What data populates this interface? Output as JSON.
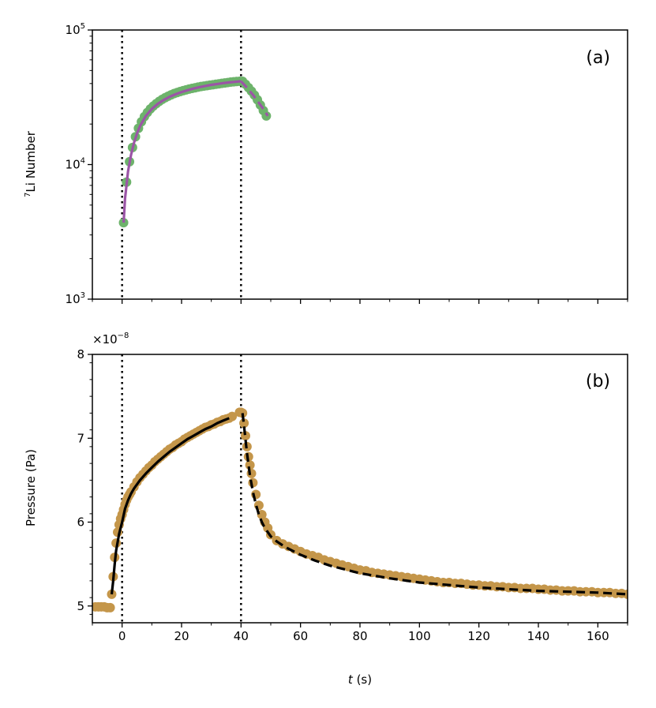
{
  "figure": {
    "xlabel": "t (s)",
    "x_ticks": [
      "0",
      "20",
      "40",
      "60",
      "80",
      "100",
      "120",
      "140",
      "160"
    ]
  },
  "chart_data": [
    {
      "type": "line",
      "panel_label": "(a)",
      "ylabel_sup": "7",
      "ylabel": "Li Number",
      "yscale": "log",
      "xlim": [
        -10,
        170
      ],
      "ylim": [
        1000,
        100000
      ],
      "y_ticks": [
        {
          "value": 1000,
          "base": "10",
          "exp": "3"
        },
        {
          "value": 10000,
          "base": "10",
          "exp": "4"
        },
        {
          "value": 100000,
          "base": "10",
          "exp": "5"
        }
      ],
      "vlines": [
        0,
        40
      ],
      "colors": {
        "markers": "#6db36b",
        "fit_growth": "#9b55a6",
        "fit_decay": "#9b55a6"
      },
      "series": [
        {
          "kind": "markers",
          "x": [
            0.5,
            1.5,
            2.5,
            3.5,
            4.5,
            5.5,
            6.5,
            7.5,
            8.5,
            9.5,
            10.5,
            11.5,
            12.5,
            13.5,
            14.5,
            15.5,
            16.5,
            17.5,
            18.5,
            19.5,
            20.5,
            21.5,
            22.5,
            23.5,
            24.5,
            25.5,
            26.5,
            27.5,
            28.5,
            29.5,
            30.5,
            31.5,
            32.5,
            33.5,
            34.5,
            35.5,
            36.5,
            37.5,
            38.5,
            39.5,
            40.5,
            41.5,
            42.5,
            43.5,
            44.5,
            45.5,
            46.5,
            47.5,
            48.5
          ],
          "y": [
            3700,
            7400,
            10500,
            13400,
            16100,
            18600,
            20800,
            22700,
            24400,
            25900,
            27200,
            28400,
            29500,
            30500,
            31400,
            32200,
            33000,
            33700,
            34300,
            34900,
            35400,
            35900,
            36400,
            36800,
            37200,
            37600,
            38000,
            38300,
            38600,
            38900,
            39200,
            39500,
            39800,
            40100,
            40400,
            40700,
            41000,
            41200,
            41400,
            41600,
            41600,
            39500,
            37300,
            35100,
            32800,
            30300,
            27700,
            25200,
            23000
          ]
        },
        {
          "kind": "fit",
          "x": [
            0.5,
            1,
            2,
            3,
            4,
            5,
            6,
            8,
            10,
            12,
            14,
            16,
            18,
            20,
            22,
            24,
            26,
            28,
            30,
            32,
            34,
            36,
            38,
            40
          ],
          "y": [
            3700,
            5600,
            8900,
            11800,
            14500,
            17000,
            19300,
            23000,
            25900,
            28300,
            30200,
            31900,
            33300,
            34600,
            35700,
            36700,
            37600,
            38400,
            39100,
            39700,
            40300,
            40800,
            41200,
            41600
          ]
        },
        {
          "kind": "fit-dashed",
          "x": [
            40,
            42,
            44,
            46,
            48,
            49
          ],
          "y": [
            41600,
            37200,
            33000,
            28800,
            25000,
            23000
          ]
        }
      ]
    },
    {
      "type": "line",
      "panel_label": "(b)",
      "ylabel": "Pressure (Pa)",
      "scale_label_base": "×10",
      "scale_label_exp": "−8",
      "xlim": [
        -10,
        170
      ],
      "ylim": [
        4.8,
        8
      ],
      "y_ticks": [
        "5",
        "6",
        "7",
        "8"
      ],
      "vlines": [
        0,
        40
      ],
      "colors": {
        "markers": "#c4964a",
        "fit_growth": "#000000",
        "fit_decay": "#000000"
      },
      "series": [
        {
          "kind": "markers",
          "x": [
            -9,
            -8,
            -7,
            -6,
            -5,
            -4,
            -3.5,
            -3,
            -2.5,
            -2,
            -1.5,
            -1,
            -0.5,
            0,
            0.5,
            1,
            1.5,
            2,
            2.5,
            3,
            4,
            5,
            6,
            7,
            8,
            9,
            10,
            11,
            12,
            13,
            14,
            15,
            16,
            17,
            18,
            19,
            20,
            21,
            22,
            23,
            24,
            25,
            26,
            27,
            28,
            29,
            30,
            31,
            32,
            33,
            34,
            35,
            36,
            37,
            39.5,
            40,
            40.5,
            41,
            41.5,
            42,
            42.5,
            43,
            43.5,
            44,
            45,
            46,
            47,
            48,
            49,
            50,
            52,
            54,
            56,
            58,
            60,
            62,
            64,
            66,
            68,
            70,
            72,
            74,
            76,
            78,
            80,
            82,
            84,
            86,
            88,
            90,
            92,
            94,
            96,
            98,
            100,
            102,
            104,
            106,
            108,
            110,
            112,
            114,
            116,
            118,
            120,
            122,
            124,
            126,
            128,
            130,
            132,
            134,
            136,
            138,
            140,
            142,
            144,
            146,
            148,
            150,
            152,
            154,
            156,
            158,
            160,
            162,
            164,
            166,
            168,
            170
          ],
          "y": [
            4.99,
            4.99,
            4.99,
            4.99,
            4.98,
            4.98,
            5.14,
            5.35,
            5.58,
            5.75,
            5.88,
            5.97,
            6.04,
            6.09,
            6.15,
            6.21,
            6.26,
            6.3,
            6.33,
            6.36,
            6.42,
            6.48,
            6.53,
            6.57,
            6.61,
            6.65,
            6.68,
            6.72,
            6.75,
            6.78,
            6.81,
            6.84,
            6.87,
            6.89,
            6.92,
            6.94,
            6.96,
            6.99,
            7.01,
            7.03,
            7.05,
            7.07,
            7.09,
            7.11,
            7.13,
            7.14,
            7.16,
            7.17,
            7.19,
            7.2,
            7.22,
            7.23,
            7.24,
            7.26,
            7.31,
            7.31,
            7.3,
            7.18,
            7.03,
            6.9,
            6.78,
            6.68,
            6.58,
            6.47,
            6.33,
            6.2,
            6.09,
            6.0,
            5.93,
            5.85,
            5.78,
            5.74,
            5.71,
            5.68,
            5.65,
            5.62,
            5.6,
            5.58,
            5.55,
            5.53,
            5.51,
            5.49,
            5.47,
            5.45,
            5.43,
            5.42,
            5.4,
            5.39,
            5.38,
            5.37,
            5.36,
            5.35,
            5.34,
            5.33,
            5.32,
            5.31,
            5.3,
            5.29,
            5.28,
            5.28,
            5.27,
            5.27,
            5.26,
            5.25,
            5.25,
            5.24,
            5.24,
            5.23,
            5.23,
            5.22,
            5.22,
            5.21,
            5.21,
            5.21,
            5.2,
            5.2,
            5.19,
            5.19,
            5.18,
            5.18,
            5.18,
            5.17,
            5.17,
            5.17,
            5.16,
            5.16,
            5.16,
            5.15,
            5.15,
            5.14
          ]
        },
        {
          "kind": "fit",
          "x": [
            -3.5,
            -3,
            -2.5,
            -2,
            -1,
            0,
            1,
            2,
            3,
            4,
            6,
            8,
            10,
            12,
            14,
            16,
            18,
            20,
            22,
            24,
            26,
            28,
            30,
            32,
            34,
            36
          ],
          "y": [
            5.14,
            5.3,
            5.5,
            5.66,
            5.86,
            6.0,
            6.16,
            6.26,
            6.34,
            6.4,
            6.5,
            6.58,
            6.65,
            6.72,
            6.78,
            6.84,
            6.89,
            6.94,
            6.99,
            7.03,
            7.07,
            7.11,
            7.14,
            7.18,
            7.21,
            7.24
          ]
        },
        {
          "kind": "fit-dashed",
          "x": [
            40.5,
            41,
            42,
            43,
            44,
            45,
            46,
            47,
            48,
            50,
            52,
            55,
            60,
            65,
            70,
            80,
            90,
            100,
            110,
            120,
            130,
            140,
            150,
            160,
            170
          ],
          "y": [
            7.3,
            7.15,
            6.82,
            6.56,
            6.36,
            6.21,
            6.09,
            6.0,
            5.93,
            5.83,
            5.77,
            5.7,
            5.61,
            5.54,
            5.48,
            5.39,
            5.33,
            5.28,
            5.25,
            5.22,
            5.2,
            5.18,
            5.17,
            5.16,
            5.14
          ]
        }
      ]
    }
  ]
}
